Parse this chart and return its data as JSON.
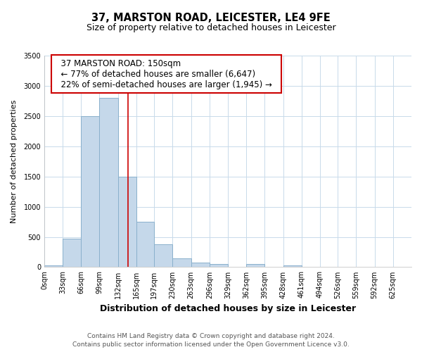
{
  "title": "37, MARSTON ROAD, LEICESTER, LE4 9FE",
  "subtitle": "Size of property relative to detached houses in Leicester",
  "xlabel": "Distribution of detached houses by size in Leicester",
  "ylabel": "Number of detached properties",
  "footnote1": "Contains HM Land Registry data © Crown copyright and database right 2024.",
  "footnote2": "Contains public sector information licensed under the Open Government Licence v3.0.",
  "annotation_line1": "37 MARSTON ROAD: 150sqm",
  "annotation_line2": "← 77% of detached houses are smaller (6,647)",
  "annotation_line3": "22% of semi-detached houses are larger (1,945) →",
  "bin_edges": [
    0,
    33,
    66,
    99,
    132,
    165,
    197,
    230,
    263,
    296,
    329,
    362,
    395,
    428,
    461,
    494,
    526,
    559,
    592,
    625,
    658
  ],
  "bar_heights": [
    25,
    470,
    2500,
    2800,
    1500,
    750,
    380,
    150,
    75,
    55,
    0,
    55,
    0,
    30,
    0,
    0,
    0,
    0,
    0,
    0
  ],
  "bar_color": "#c5d8ea",
  "bar_edge_color": "#8ab0cc",
  "bar_linewidth": 0.7,
  "property_sqm": 150,
  "vline_color": "#cc0000",
  "vline_linewidth": 1.2,
  "ylim": [
    0,
    3500
  ],
  "yticks": [
    0,
    500,
    1000,
    1500,
    2000,
    2500,
    3000,
    3500
  ],
  "grid_color": "#c8daea",
  "annotation_box_color": "#cc0000",
  "background_color": "#ffffff",
  "title_fontsize": 10.5,
  "subtitle_fontsize": 9,
  "xlabel_fontsize": 9,
  "ylabel_fontsize": 8,
  "tick_fontsize": 7,
  "annotation_fontsize": 8.5,
  "footnote_fontsize": 6.5
}
